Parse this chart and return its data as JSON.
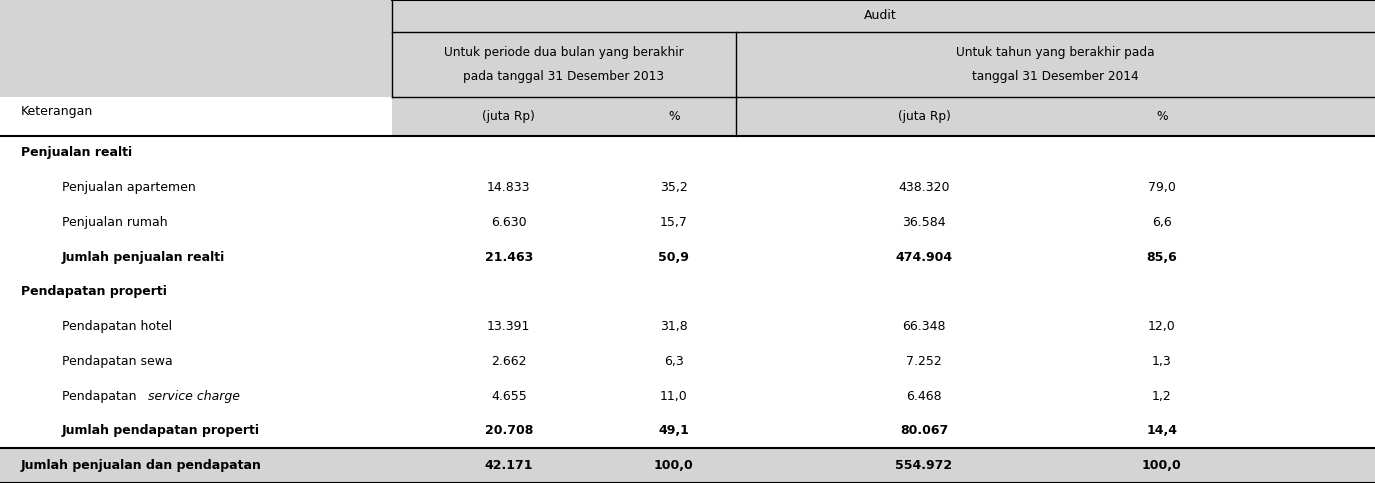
{
  "title_audit": "Audit",
  "col_header_1a": "Untuk periode dua bulan yang berakhir",
  "col_header_1b": "pada tanggal 31 Desember 2013",
  "col_header_2a": "Untuk tahun yang berakhir pada",
  "col_header_2b": "tanggal 31 Desember 2014",
  "sub_col_1": "(juta Rp)",
  "sub_col_2": "%",
  "sub_col_3": "(juta Rp)",
  "sub_col_4": "%",
  "keterangan_label": "Keterangan",
  "rows": [
    {
      "label": "Penjualan realti",
      "bold": true,
      "section_header": true,
      "indent": 0,
      "vals": [
        "",
        "",
        "",
        ""
      ]
    },
    {
      "label": "Penjualan apartemen",
      "bold": false,
      "section_header": false,
      "indent": 1,
      "vals": [
        "14.833",
        "35,2",
        "438.320",
        "79,0"
      ]
    },
    {
      "label": "Penjualan rumah",
      "bold": false,
      "section_header": false,
      "indent": 1,
      "vals": [
        "6.630",
        "15,7",
        "36.584",
        "6,6"
      ]
    },
    {
      "label": "Jumlah penjualan realti",
      "bold": true,
      "section_header": false,
      "indent": 1,
      "vals": [
        "21.463",
        "50,9",
        "474.904",
        "85,6"
      ]
    },
    {
      "label": "Pendapatan properti",
      "bold": true,
      "section_header": true,
      "indent": 0,
      "vals": [
        "",
        "",
        "",
        ""
      ]
    },
    {
      "label": "Pendapatan hotel",
      "bold": false,
      "section_header": false,
      "indent": 1,
      "vals": [
        "13.391",
        "31,8",
        "66.348",
        "12,0"
      ]
    },
    {
      "label": "Pendapatan sewa",
      "bold": false,
      "section_header": false,
      "indent": 1,
      "vals": [
        "2.662",
        "6,3",
        "7.252",
        "1,3"
      ]
    },
    {
      "label": "Pendapatan service charge",
      "bold": false,
      "section_header": false,
      "indent": 1,
      "italic_word": "service charge",
      "italic_prefix": "Pendapatan ",
      "vals": [
        "4.655",
        "11,0",
        "6.468",
        "1,2"
      ]
    },
    {
      "label": "Jumlah pendapatan properti",
      "bold": true,
      "section_header": false,
      "indent": 1,
      "vals": [
        "20.708",
        "49,1",
        "80.067",
        "14,4"
      ]
    },
    {
      "label": "Jumlah penjualan dan pendapatan",
      "bold": true,
      "section_header": false,
      "indent": 0,
      "vals": [
        "42.171",
        "100,0",
        "554.972",
        "100,0"
      ],
      "last_row": true
    }
  ],
  "col_sep": 0.29,
  "col_sep2": 0.535,
  "header_bg": "#d4d4d4",
  "white_bg": "#ffffff",
  "last_row_bg": "#d4d4d4",
  "fig_bg": "#ffffff",
  "fs": 9.0
}
